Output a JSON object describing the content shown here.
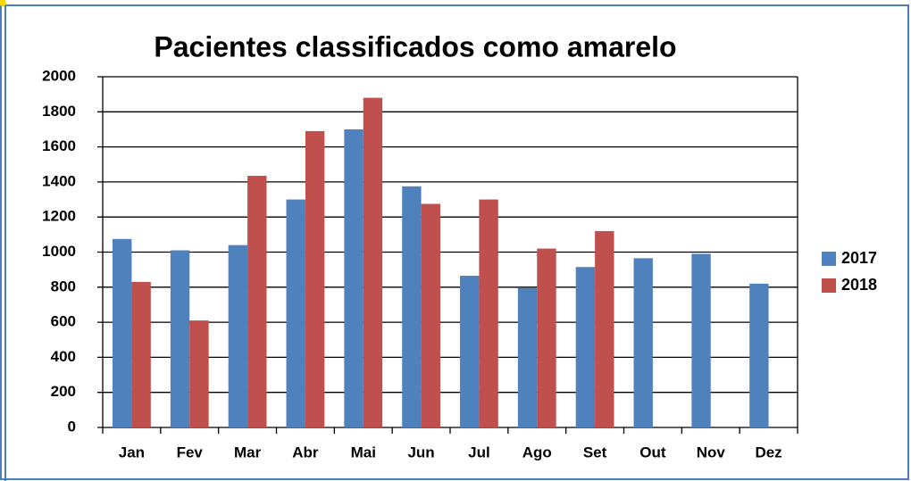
{
  "chart_data": {
    "type": "bar",
    "title": "Pacientes classificados como amarelo",
    "categories": [
      "Jan",
      "Fev",
      "Mar",
      "Abr",
      "Mai",
      "Jun",
      "Jul",
      "Ago",
      "Set",
      "Out",
      "Nov",
      "Dez"
    ],
    "series": [
      {
        "name": "2017",
        "color": "#4f81bd",
        "values": [
          1075,
          1010,
          1040,
          1300,
          1700,
          1375,
          865,
          795,
          915,
          965,
          990,
          820
        ]
      },
      {
        "name": "2018",
        "color": "#c0504d",
        "values": [
          830,
          610,
          1435,
          1690,
          1880,
          1275,
          1300,
          1020,
          1120,
          null,
          null,
          null
        ]
      }
    ],
    "ylim": [
      0,
      2000
    ],
    "yticks": [
      0,
      200,
      400,
      600,
      800,
      1000,
      1200,
      1400,
      1600,
      1800,
      2000
    ],
    "grid": true,
    "legend": "right"
  }
}
